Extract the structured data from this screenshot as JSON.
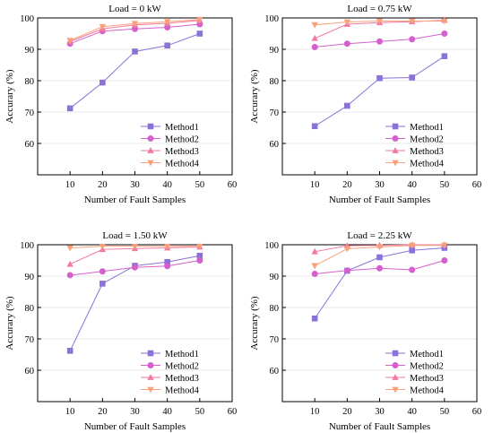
{
  "figure": {
    "colors": {
      "Method1": "#8a72d6",
      "Method2": "#d45fcd",
      "Method3": "#f27aa0",
      "Method4": "#f7a179",
      "axis": "#000000",
      "grid": "#e8e8e8"
    }
  },
  "chart_data": [
    {
      "type": "line",
      "title": "Load = 0 kW",
      "xlabel": "Number of Fault Samples",
      "ylabel": "Accurary (%)",
      "xlim": [
        0,
        60
      ],
      "ylim": [
        50,
        100
      ],
      "xticks": [
        10,
        20,
        30,
        40,
        50,
        60
      ],
      "yticks": [
        60,
        70,
        80,
        90,
        100
      ],
      "x": [
        10,
        20,
        30,
        40,
        50
      ],
      "legend_position": "bottom-right",
      "series": [
        {
          "name": "Method1",
          "marker": "square",
          "values": [
            71.2,
            79.4,
            89.3,
            91.2,
            95.0
          ]
        },
        {
          "name": "Method2",
          "marker": "circle",
          "values": [
            91.8,
            95.8,
            96.5,
            97.0,
            98.0
          ]
        },
        {
          "name": "Method3",
          "marker": "triangle-up",
          "values": [
            92.5,
            96.5,
            97.8,
            98.3,
            99.2
          ]
        },
        {
          "name": "Method4",
          "marker": "triangle-down",
          "values": [
            92.8,
            97.2,
            98.2,
            98.8,
            99.5
          ]
        }
      ]
    },
    {
      "type": "line",
      "title": "Load = 0.75 kW",
      "xlabel": "Number of Fault Samples",
      "ylabel": "Accurary (%)",
      "xlim": [
        0,
        60
      ],
      "ylim": [
        50,
        100
      ],
      "xticks": [
        10,
        20,
        30,
        40,
        50,
        60
      ],
      "yticks": [
        60,
        70,
        80,
        90,
        100
      ],
      "x": [
        10,
        20,
        30,
        40,
        50
      ],
      "legend_position": "bottom-right",
      "series": [
        {
          "name": "Method1",
          "marker": "square",
          "values": [
            65.5,
            72.0,
            80.8,
            81.0,
            87.8
          ]
        },
        {
          "name": "Method2",
          "marker": "circle",
          "values": [
            90.7,
            91.8,
            92.5,
            93.2,
            95.0
          ]
        },
        {
          "name": "Method3",
          "marker": "triangle-up",
          "values": [
            93.5,
            98.0,
            98.5,
            98.8,
            99.3
          ]
        },
        {
          "name": "Method4",
          "marker": "triangle-down",
          "values": [
            97.8,
            98.7,
            99.0,
            99.0,
            99.0
          ]
        }
      ]
    },
    {
      "type": "line",
      "title": "Load = 1.50 kW",
      "xlabel": "Number of Fault Samples",
      "ylabel": "Accurary (%)",
      "xlim": [
        0,
        60
      ],
      "ylim": [
        50,
        100
      ],
      "xticks": [
        10,
        20,
        30,
        40,
        50,
        60
      ],
      "yticks": [
        60,
        70,
        80,
        90,
        100
      ],
      "x": [
        10,
        20,
        30,
        40,
        50
      ],
      "legend_position": "bottom-right",
      "series": [
        {
          "name": "Method1",
          "marker": "square",
          "values": [
            66.2,
            87.6,
            93.3,
            94.5,
            96.5
          ]
        },
        {
          "name": "Method2",
          "marker": "circle",
          "values": [
            90.3,
            91.5,
            92.8,
            93.2,
            95.0
          ]
        },
        {
          "name": "Method3",
          "marker": "triangle-up",
          "values": [
            93.8,
            98.5,
            98.8,
            99.0,
            99.3
          ]
        },
        {
          "name": "Method4",
          "marker": "triangle-down",
          "values": [
            99.0,
            99.5,
            99.5,
            99.5,
            99.5
          ]
        }
      ]
    },
    {
      "type": "line",
      "title": "Load = 2.25 kW",
      "xlabel": "Number of Fault Samples",
      "ylabel": "Accurary (%)",
      "xlim": [
        0,
        60
      ],
      "ylim": [
        50,
        100
      ],
      "xticks": [
        10,
        20,
        30,
        40,
        50,
        60
      ],
      "yticks": [
        60,
        70,
        80,
        90,
        100
      ],
      "x": [
        10,
        20,
        30,
        40,
        50
      ],
      "legend_position": "bottom-right",
      "series": [
        {
          "name": "Method1",
          "marker": "square",
          "values": [
            76.5,
            91.7,
            96.0,
            98.2,
            99.0
          ]
        },
        {
          "name": "Method2",
          "marker": "circle",
          "values": [
            90.7,
            91.8,
            92.5,
            92.0,
            95.0
          ]
        },
        {
          "name": "Method3",
          "marker": "triangle-up",
          "values": [
            97.8,
            99.7,
            99.8,
            100.0,
            100.0
          ]
        },
        {
          "name": "Method4",
          "marker": "triangle-down",
          "values": [
            93.3,
            98.7,
            99.3,
            99.8,
            99.8
          ]
        }
      ]
    }
  ]
}
